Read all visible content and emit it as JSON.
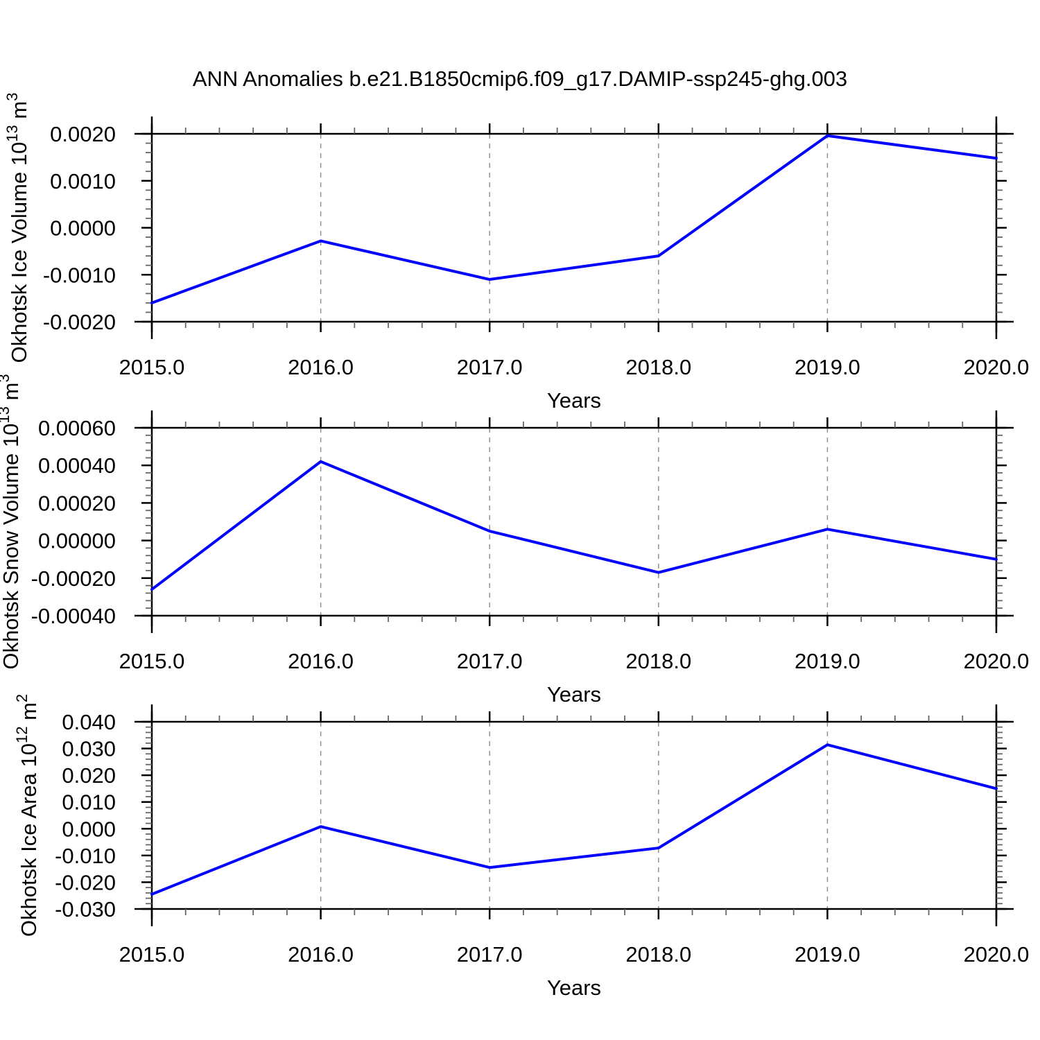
{
  "title": "ANN Anomalies b.e21.B1850cmip6.f09_g17.DAMIP-ssp245-ghg.003",
  "colors": {
    "line": "#0000ff",
    "axis": "#000000",
    "minor_tick": "#666666",
    "gridline": "#909090",
    "text": "#000000",
    "background": "#ffffff"
  },
  "chart_data": [
    {
      "type": "line",
      "ylabel": {
        "name": "Okhotsk Ice Volume",
        "scale_base": "10",
        "scale_exp": "13",
        "unit_base": "m",
        "unit_exp": "3"
      },
      "xlabel": "Years",
      "x": [
        2015.0,
        2016.0,
        2017.0,
        2018.0,
        2019.0,
        2020.0
      ],
      "y": [
        -0.0016,
        -0.00028,
        -0.0011,
        -0.0006,
        0.00196,
        0.00148
      ],
      "xlim": [
        2015.0,
        2020.0
      ],
      "ylim": [
        -0.002,
        0.002
      ],
      "ytick_values": [
        0.002,
        0.001,
        0.0,
        -0.001,
        -0.002
      ],
      "ytick_labels": [
        "0.0020",
        "0.0010",
        "0.0000",
        "-0.0010",
        "-0.0020"
      ],
      "y_minor_step": 0.0002,
      "xtick_labels": [
        "2015.0",
        "2016.0",
        "2017.0",
        "2018.0",
        "2019.0",
        "2020.0"
      ],
      "x_minor_step": 0.2,
      "gridline_x": [
        2016,
        2017,
        2018,
        2019
      ],
      "grid": "vertical-dashed",
      "legend": "none",
      "line_color": "#0000ff"
    },
    {
      "type": "line",
      "ylabel": {
        "name": "Okhotsk Snow Volume",
        "scale_base": "10",
        "scale_exp": "13",
        "unit_base": "m",
        "unit_exp": "3"
      },
      "xlabel": "Years",
      "x": [
        2015.0,
        2016.0,
        2017.0,
        2018.0,
        2019.0,
        2020.0
      ],
      "y": [
        -0.00026,
        0.00042,
        5e-05,
        -0.00017,
        6e-05,
        -0.0001
      ],
      "xlim": [
        2015.0,
        2020.0
      ],
      "ylim": [
        -0.0004,
        0.0006
      ],
      "ytick_values": [
        0.0006,
        0.0004,
        0.0002,
        0.0,
        -0.0002,
        -0.0004
      ],
      "ytick_labels": [
        "0.00060",
        "0.00040",
        "0.00020",
        "0.00000",
        "-0.00020",
        "-0.00040"
      ],
      "y_minor_step": 4e-05,
      "xtick_labels": [
        "2015.0",
        "2016.0",
        "2017.0",
        "2018.0",
        "2019.0",
        "2020.0"
      ],
      "x_minor_step": 0.2,
      "gridline_x": [
        2016,
        2017,
        2018,
        2019
      ],
      "grid": "vertical-dashed",
      "legend": "none",
      "line_color": "#0000ff"
    },
    {
      "type": "line",
      "ylabel": {
        "name": "Okhotsk Ice Area",
        "scale_base": "10",
        "scale_exp": "12",
        "unit_base": "m",
        "unit_exp": "2"
      },
      "xlabel": "Years",
      "x": [
        2015.0,
        2016.0,
        2017.0,
        2018.0,
        2019.0,
        2020.0
      ],
      "y": [
        -0.0245,
        0.0008,
        -0.0145,
        -0.0072,
        0.0314,
        0.015
      ],
      "xlim": [
        2015.0,
        2020.0
      ],
      "ylim": [
        -0.03,
        0.04
      ],
      "ytick_values": [
        0.04,
        0.03,
        0.02,
        0.01,
        0.0,
        -0.01,
        -0.02,
        -0.03
      ],
      "ytick_labels": [
        "0.040",
        "0.030",
        "0.020",
        "0.010",
        "0.000",
        "-0.010",
        "-0.020",
        "-0.030"
      ],
      "y_minor_step": 0.002,
      "xtick_labels": [
        "2015.0",
        "2016.0",
        "2017.0",
        "2018.0",
        "2019.0",
        "2020.0"
      ],
      "x_minor_step": 0.2,
      "gridline_x": [
        2016,
        2017,
        2018,
        2019
      ],
      "grid": "vertical-dashed",
      "legend": "none",
      "line_color": "#0000ff"
    }
  ]
}
